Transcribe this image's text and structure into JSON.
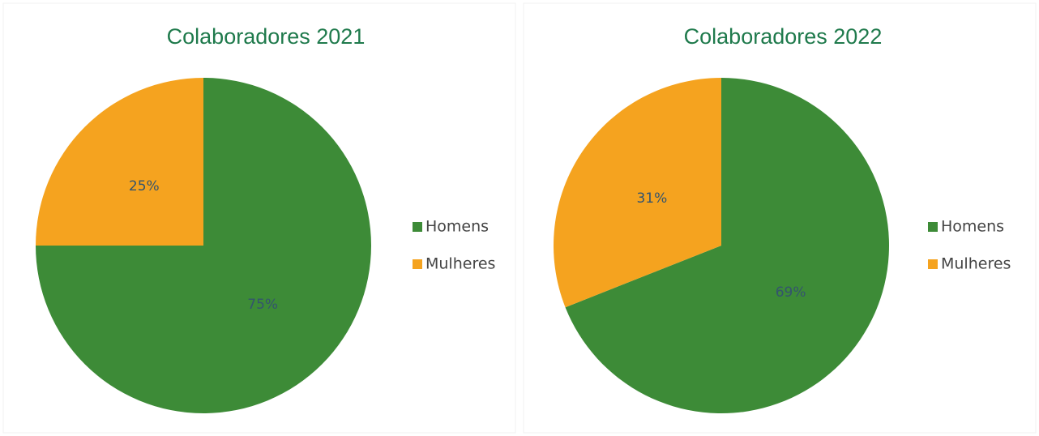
{
  "chart_data": [
    {
      "type": "pie",
      "title": "Colaboradores 2021",
      "categories": [
        "Homens",
        "Mulheres"
      ],
      "values": [
        75,
        25
      ],
      "value_labels": [
        "75%",
        "25%"
      ],
      "colors": [
        "#3d8b37",
        "#f5a31f"
      ],
      "legend": "right"
    },
    {
      "type": "pie",
      "title": "Colaboradores 2022",
      "categories": [
        "Homens",
        "Mulheres"
      ],
      "values": [
        69,
        31
      ],
      "value_labels": [
        "69%",
        "31%"
      ],
      "colors": [
        "#3d8b37",
        "#f5a31f"
      ],
      "legend": "right"
    }
  ]
}
